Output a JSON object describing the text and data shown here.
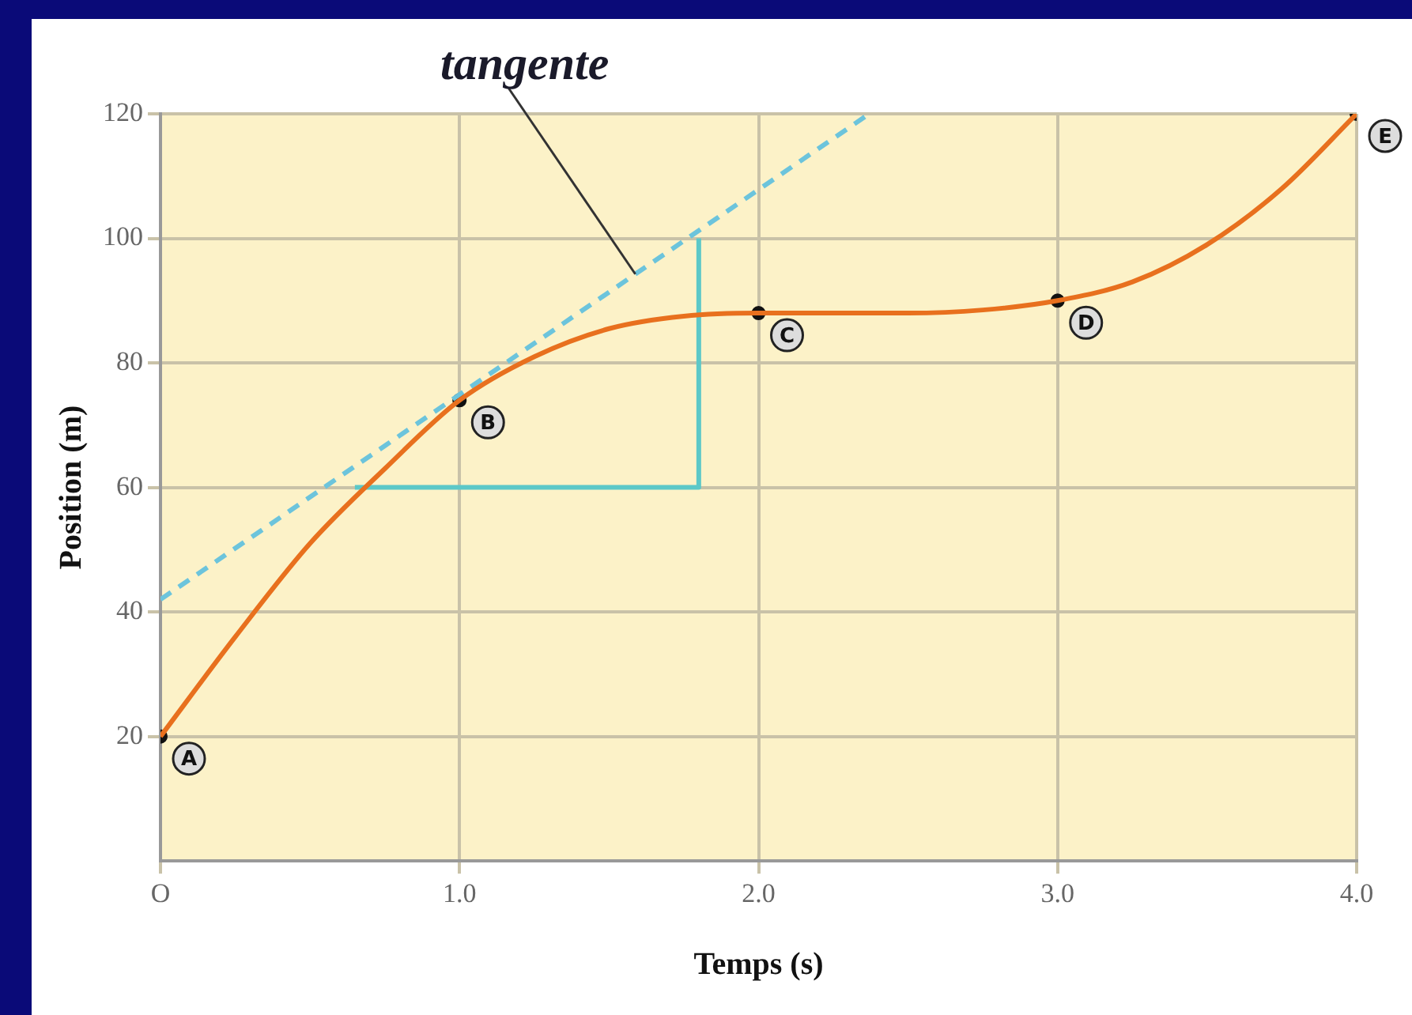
{
  "chart_data": {
    "type": "line",
    "xlabel": "Temps (s)",
    "ylabel": "Position (m)",
    "xlim": [
      0,
      4
    ],
    "ylim": [
      0,
      120
    ],
    "xticks": [
      {
        "value": 0,
        "label": "O"
      },
      {
        "value": 1,
        "label": "1.0"
      },
      {
        "value": 2,
        "label": "2.0"
      },
      {
        "value": 3,
        "label": "3.0"
      },
      {
        "value": 4,
        "label": "4.0"
      }
    ],
    "yticks": [
      20,
      40,
      60,
      80,
      100,
      120
    ],
    "grid": true,
    "legend": false,
    "series": [
      {
        "color": "#e8701e",
        "marker": "none",
        "line_style": "solid",
        "x": [
          0,
          0.25,
          0.5,
          0.75,
          1.0,
          1.25,
          1.5,
          1.75,
          2.0,
          2.25,
          2.5,
          2.75,
          3.0,
          3.25,
          3.5,
          3.75,
          4.0
        ],
        "values": [
          20,
          36,
          51,
          63,
          74,
          81,
          85.5,
          87.5,
          88,
          88,
          88,
          88.5,
          90,
          93,
          99,
          108,
          120
        ]
      },
      {
        "name": "tangente",
        "color": "#6cc4dc",
        "marker": "none",
        "line_style": "dashed",
        "x": [
          0,
          2.37
        ],
        "values": [
          42,
          120
        ]
      },
      {
        "color": "#5cc8c8",
        "marker": "none",
        "line_style": "solid",
        "x": [
          0.65,
          1.8,
          1.8
        ],
        "values": [
          60,
          60,
          100
        ]
      },
      {
        "type": "scatter",
        "color": "#111111",
        "marker": "circle",
        "x": [
          0,
          1,
          2,
          3,
          4
        ],
        "values": [
          20,
          74,
          88,
          90,
          120
        ]
      }
    ],
    "annotations": [
      {
        "text": "A",
        "x": 0,
        "y": 20
      },
      {
        "text": "B",
        "x": 1,
        "y": 74
      },
      {
        "text": "C",
        "x": 2,
        "y": 88
      },
      {
        "text": "D",
        "x": 3,
        "y": 90
      },
      {
        "text": "E",
        "x": 4,
        "y": 120
      }
    ]
  }
}
